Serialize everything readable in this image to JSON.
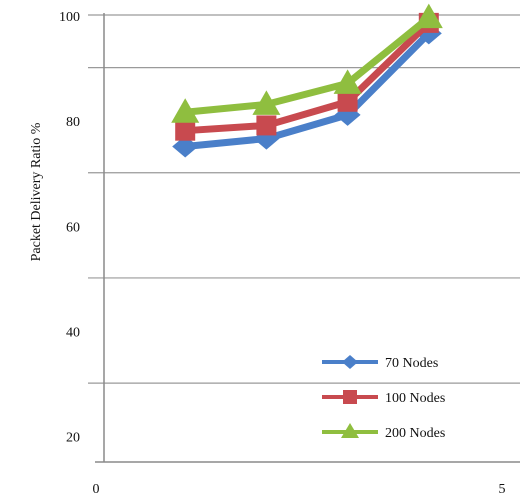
{
  "chart_data": {
    "type": "line",
    "title": "",
    "xlabel": "",
    "ylabel": "Packet Delivery Ratio %",
    "xlim": [
      0,
      5
    ],
    "ylim": [
      15,
      100
    ],
    "x_ticks": [
      {
        "value": 0,
        "label": "0"
      },
      {
        "value": 5,
        "label": "5"
      }
    ],
    "y_ticks": [
      {
        "value": 20,
        "label": "20"
      },
      {
        "value": 40,
        "label": "40"
      },
      {
        "value": 60,
        "label": "60"
      },
      {
        "value": 80,
        "label": "80"
      },
      {
        "value": 100,
        "label": "100"
      }
    ],
    "gridlines_y": [
      30,
      50,
      70,
      90,
      100
    ],
    "grid": true,
    "legend_position": "bottom-right",
    "x": [
      1,
      2,
      3,
      4
    ],
    "series": [
      {
        "name": "70 Nodes",
        "values": [
          75,
          76.5,
          81,
          96.5
        ],
        "color": "#4a7fc9",
        "marker": "diamond"
      },
      {
        "name": "100 Nodes",
        "values": [
          78,
          79,
          83.5,
          98.5
        ],
        "color": "#c84a4f",
        "marker": "square"
      },
      {
        "name": "200 Nodes",
        "values": [
          81.5,
          83,
          87,
          99.5
        ],
        "color": "#8fbe3f",
        "marker": "triangle"
      }
    ]
  }
}
